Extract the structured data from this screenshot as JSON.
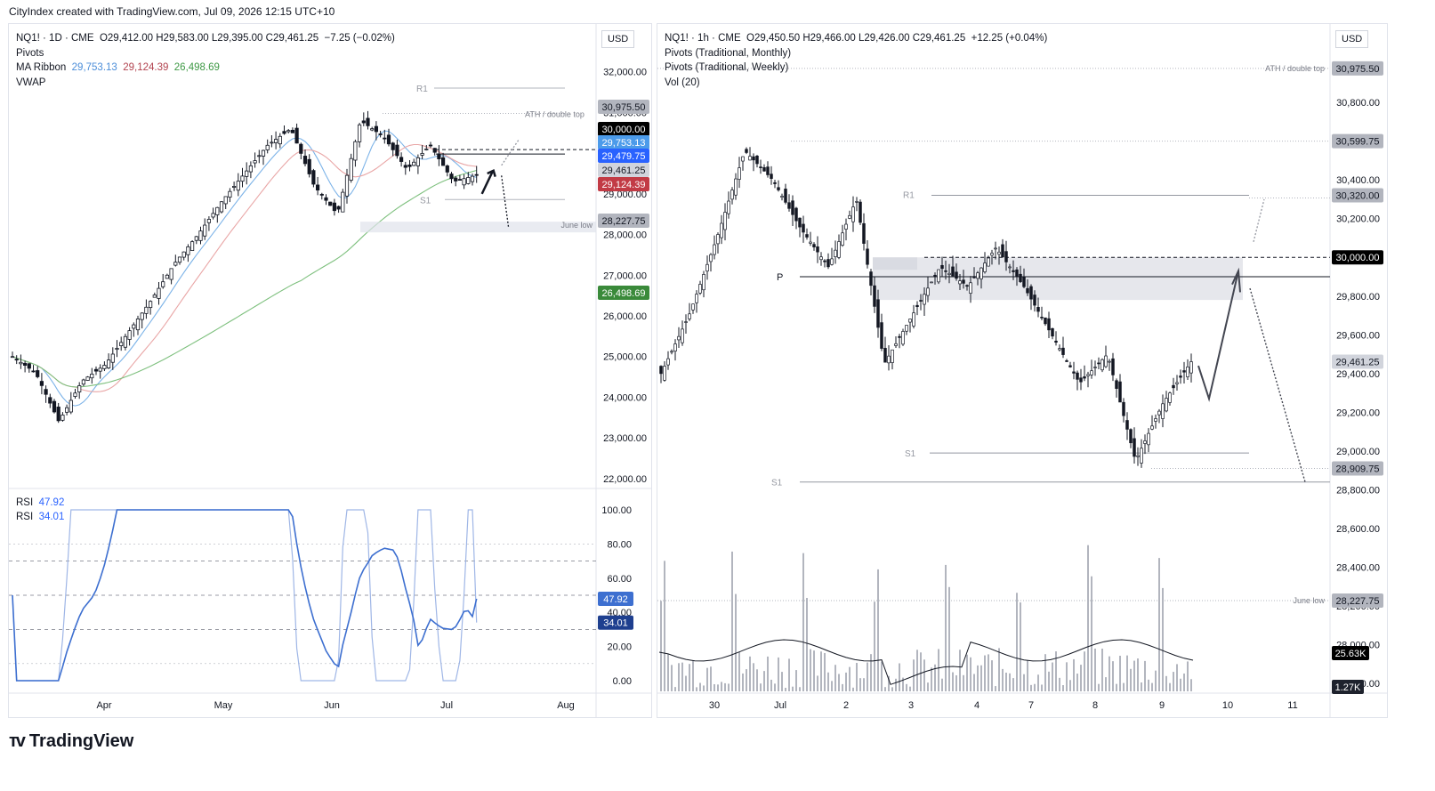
{
  "header": {
    "text": "CityIndex created with TradingView.com, Jul 09, 2026 12:15 UTC+10"
  },
  "footer": {
    "brand": "TradingView",
    "logo_icon": "tradingview-logo-icon"
  },
  "left": {
    "currency": "USD",
    "legend": {
      "symbol": "NQ1! · 1D · CME",
      "ohlc": "O29,412.00  H29,583.00  L29,395.00  C29,461.25",
      "change": "−7.25 (−0.02%)",
      "pivots": "Pivots",
      "ma_label": "MA Ribbon",
      "ma1": "29,753.13",
      "ma2": "29,124.39",
      "ma3": "26,498.69",
      "vwap": "VWAP"
    },
    "rsi_legend": {
      "label1": "RSI",
      "val1": "47.92",
      "label2": "RSI",
      "val2": "34.01"
    },
    "y_ticks": [
      "32,000.00",
      "31,000.00",
      "30,000.00",
      "29,000.00",
      "28,000.00",
      "27,000.00",
      "26,000.00",
      "25,000.00",
      "24,000.00",
      "23,000.00",
      "22,000.00"
    ],
    "rsi_ticks": [
      "100.00",
      "80.00",
      "60.00",
      "40.00",
      "20.00",
      "0.00"
    ],
    "x_ticks": [
      "Apr",
      "May",
      "Jun",
      "Jul",
      "Aug"
    ],
    "price_tags": [
      {
        "text": "30,975.50",
        "bg": "#b2b5be",
        "fg": "#131722"
      },
      {
        "text": "30,000.00",
        "bg": "#000000",
        "fg": "#ffffff"
      },
      {
        "text": "29,753.13",
        "bg": "#4c9bea",
        "fg": "#ffffff"
      },
      {
        "text": "29,479.75",
        "bg": "#2962ff",
        "fg": "#ffffff"
      },
      {
        "text": "29,461.25",
        "bg": "#d1d4dc",
        "fg": "#131722"
      },
      {
        "text": "29,124.39",
        "bg": "#c23b45",
        "fg": "#ffffff"
      },
      {
        "text": "28,227.75",
        "bg": "#b2b5be",
        "fg": "#131722"
      },
      {
        "text": "26,498.69",
        "bg": "#3a8a3a",
        "fg": "#ffffff"
      },
      {
        "text": "47.92",
        "bg": "#3d6fd0",
        "fg": "#ffffff"
      },
      {
        "text": "34.01",
        "bg": "#1e3f8f",
        "fg": "#ffffff"
      }
    ],
    "annotations": {
      "r1": "R1",
      "s1": "S1",
      "ath": "ATH / double top",
      "june_low": "June low"
    }
  },
  "right": {
    "currency": "USD",
    "legend": {
      "symbol": "NQ1! · 1h · CME",
      "ohlc": "O29,450.50  H29,466.00  L29,426.00  C29,461.25",
      "change": "+12.25 (+0.04%)",
      "pivots_monthly": "Pivots (Traditional, Monthly)",
      "pivots_weekly": "Pivots (Traditional, Weekly)",
      "vol": "Vol (20)"
    },
    "y_ticks": [
      "30,800.00",
      "30,600.00",
      "30,400.00",
      "30,200.00",
      "30,000.00",
      "29,800.00",
      "29,600.00",
      "29,400.00",
      "29,200.00",
      "29,000.00",
      "28,800.00",
      "28,600.00",
      "28,400.00",
      "28,200.00",
      "28,000.00",
      "27,800.00"
    ],
    "x_ticks": [
      "30",
      "Jul",
      "2",
      "3",
      "4",
      "7",
      "8",
      "9",
      "10",
      "11"
    ],
    "price_tags": [
      {
        "text": "30,975.50",
        "bg": "#b2b5be",
        "fg": "#131722"
      },
      {
        "text": "30,599.75",
        "bg": "#b2b5be",
        "fg": "#131722"
      },
      {
        "text": "30,320.00",
        "bg": "#b2b5be",
        "fg": "#131722"
      },
      {
        "text": "30,000.00",
        "bg": "#000000",
        "fg": "#ffffff"
      },
      {
        "text": "29,461.25",
        "bg": "#d1d4dc",
        "fg": "#131722"
      },
      {
        "text": "28,909.75",
        "bg": "#b2b5be",
        "fg": "#131722"
      },
      {
        "text": "28,227.75",
        "bg": "#b2b5be",
        "fg": "#131722"
      },
      {
        "text": "25.63K",
        "bg": "#000000",
        "fg": "#ffffff"
      },
      {
        "text": "1.27K",
        "bg": "#1e222d",
        "fg": "#ffffff"
      }
    ],
    "annotations": {
      "r1": "R1",
      "p": "P",
      "s1": "S1",
      "s1b": "S1",
      "ath": "ATH / double top",
      "june_low": "June low"
    }
  },
  "chart_data": [
    {
      "type": "candlestick",
      "title": "NQ1! · 1D · CME",
      "x_axis": [
        "Apr",
        "May",
        "Jun",
        "Jul",
        "Aug"
      ],
      "ylim": [
        21800,
        32300
      ],
      "levels": {
        "R1": 31600,
        "ATH": 30975.5,
        "pivot": 30000,
        "S1": 28860,
        "june_low": 28227.75
      },
      "ma_ribbon": [
        {
          "name": "MA1",
          "last": 29753.13,
          "color": "#7cb3e8"
        },
        {
          "name": "MA2",
          "last": 29124.39,
          "color": "#e9a6a6"
        },
        {
          "name": "MA3",
          "last": 26498.69,
          "color": "#7ec07e"
        }
      ],
      "close_path": [
        {
          "x": "Mar-16",
          "y": 25000
        },
        {
          "x": "Mar-23",
          "y": 24600
        },
        {
          "x": "Mar-27",
          "y": 23400
        },
        {
          "x": "Apr-1",
          "y": 24400
        },
        {
          "x": "Apr-8",
          "y": 24800
        },
        {
          "x": "Apr-15",
          "y": 25600
        },
        {
          "x": "Apr-22",
          "y": 26400
        },
        {
          "x": "Apr-29",
          "y": 27300
        },
        {
          "x": "May-6",
          "y": 28000
        },
        {
          "x": "May-13",
          "y": 28800
        },
        {
          "x": "May-20",
          "y": 29500
        },
        {
          "x": "May-27",
          "y": 30200
        },
        {
          "x": "Jun-1",
          "y": 30600
        },
        {
          "x": "Jun-5",
          "y": 29200
        },
        {
          "x": "Jun-10",
          "y": 28500
        },
        {
          "x": "Jun-15",
          "y": 30800
        },
        {
          "x": "Jun-19",
          "y": 30400
        },
        {
          "x": "Jun-24",
          "y": 29600
        },
        {
          "x": "Jun-29",
          "y": 30200
        },
        {
          "x": "Jul-3",
          "y": 29300
        },
        {
          "x": "Jul-8",
          "y": 29461.25
        }
      ],
      "rsi": {
        "ylim": [
          0,
          100
        ],
        "levels": [
          30,
          50,
          70
        ],
        "last": [
          47.92,
          34.01
        ]
      }
    },
    {
      "type": "candlestick",
      "title": "NQ1! · 1h · CME",
      "x_axis": [
        "30",
        "Jul",
        "2",
        "3",
        "4",
        "7",
        "8",
        "9",
        "10",
        "11"
      ],
      "ylim": [
        27750,
        31030
      ],
      "levels": {
        "ATH": 30975.5,
        "high": 30599.75,
        "R1_weekly": 30320,
        "pivot": 30000,
        "P_monthly": 29900,
        "S1_weekly": 28990,
        "S1_monthly": 28840,
        "low": 28909.75,
        "june_low": 28227.75
      },
      "close_path": [
        {
          "x": "Jun-29 18h",
          "y": 29400
        },
        {
          "x": "Jun-30 04h",
          "y": 29700
        },
        {
          "x": "Jun-30 16h",
          "y": 30100
        },
        {
          "x": "Jul-1 02h",
          "y": 30550
        },
        {
          "x": "Jul-1 14h",
          "y": 30400
        },
        {
          "x": "Jul-2 06h",
          "y": 30150
        },
        {
          "x": "Jul-2 18h",
          "y": 29950
        },
        {
          "x": "Jul-3 02h",
          "y": 30300
        },
        {
          "x": "Jul-3 06h",
          "y": 29450
        },
        {
          "x": "Jul-3 18h",
          "y": 29700
        },
        {
          "x": "Jul-4 12h",
          "y": 29950
        },
        {
          "x": "Jul-6 12h",
          "y": 29850
        },
        {
          "x": "Jul-7 00h",
          "y": 30050
        },
        {
          "x": "Jul-7 14h",
          "y": 29850
        },
        {
          "x": "Jul-8 00h",
          "y": 29600
        },
        {
          "x": "Jul-8 08h",
          "y": 29350
        },
        {
          "x": "Jul-8 16h",
          "y": 29500
        },
        {
          "x": "Jul-8 22h",
          "y": 28950
        },
        {
          "x": "Jul-9 04h",
          "y": 29250
        },
        {
          "x": "Jul-9 12h",
          "y": 29461.25
        }
      ],
      "volume": {
        "ma_last": "25.63K",
        "last": "1.27K"
      }
    }
  ]
}
